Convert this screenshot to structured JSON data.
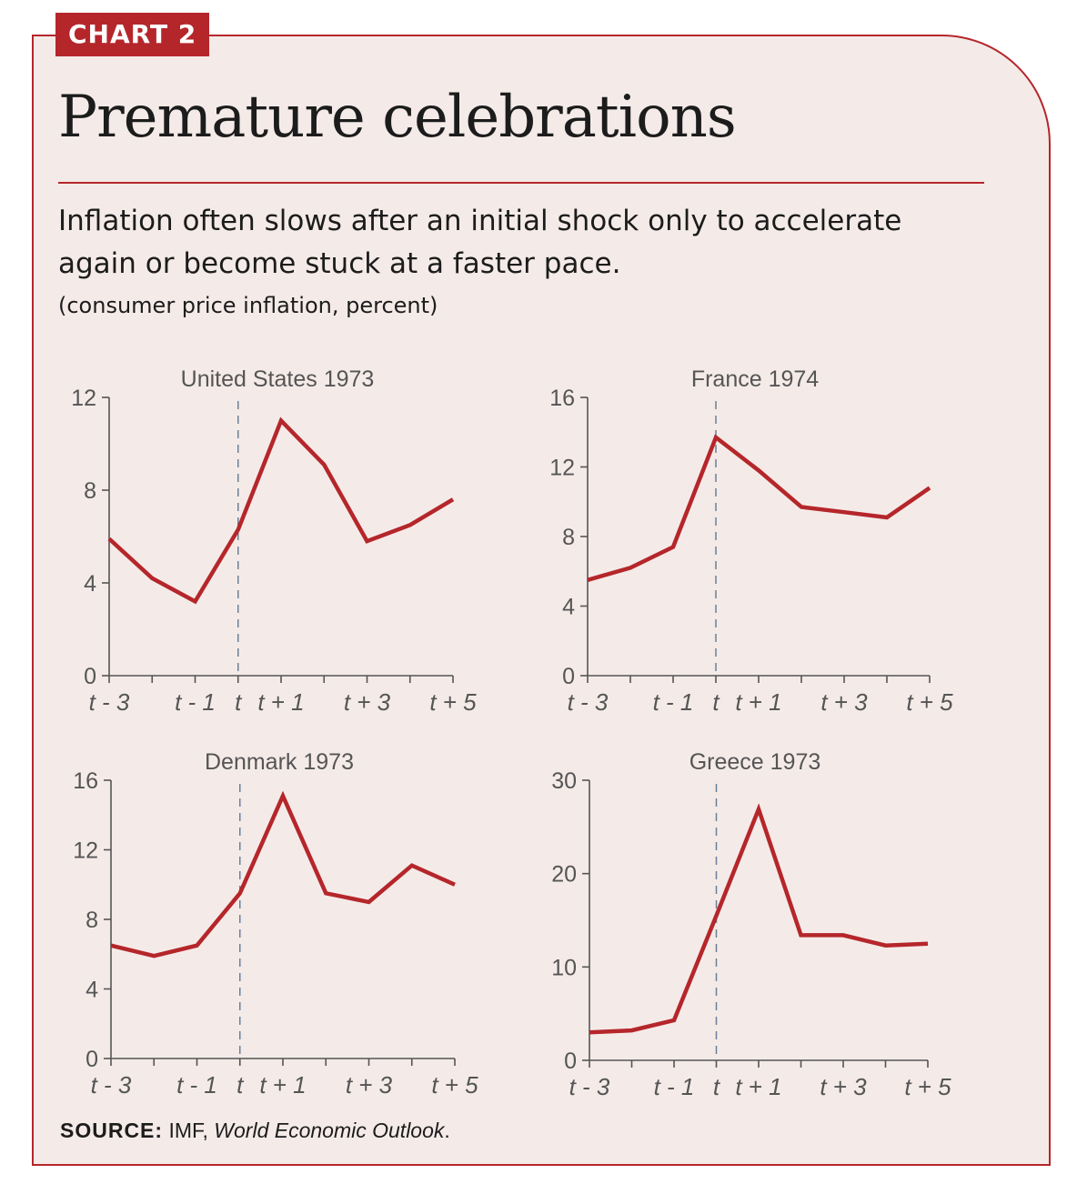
{
  "badge": "CHART 2",
  "title": "Premature celebrations",
  "subtitle": "Inflation often slows after an initial shock only to accelerate again or become stuck at a faster pace.",
  "units": "(consumer price inflation, percent)",
  "source": {
    "label": "SOURCE:",
    "publisher": "IMF,",
    "publication": "World Economic Outlook",
    "end": "."
  },
  "colors": {
    "line": "#b5262b",
    "axis": "#555555",
    "divider": "#6a7f96",
    "background": "#f4ebe8"
  },
  "chart_data": [
    {
      "type": "line",
      "title": "United States 1973",
      "x": [
        -3,
        -2,
        -1,
        0,
        1,
        2,
        3,
        4,
        5
      ],
      "ylim": [
        0,
        12
      ],
      "yticks": [
        0,
        4,
        8,
        12
      ],
      "xticks": [
        -3,
        -1,
        0,
        1,
        3,
        5
      ],
      "xticklabels": [
        "t - 3",
        "t - 1",
        "t",
        "t + 1",
        "t + 3",
        "t + 5"
      ],
      "series": [
        {
          "name": "Inflation",
          "values": [
            5.9,
            4.2,
            3.2,
            6.3,
            11.0,
            9.1,
            5.8,
            6.5,
            7.6
          ]
        }
      ],
      "vline": 0,
      "xlabel": "",
      "ylabel": ""
    },
    {
      "type": "line",
      "title": "France 1974",
      "x": [
        -3,
        -2,
        -1,
        0,
        1,
        2,
        3,
        4,
        5
      ],
      "ylim": [
        0,
        16
      ],
      "yticks": [
        0,
        4,
        8,
        12,
        16
      ],
      "xticks": [
        -3,
        -1,
        0,
        1,
        3,
        5
      ],
      "xticklabels": [
        "t - 3",
        "t - 1",
        "t",
        "t + 1",
        "t + 3",
        "t + 5"
      ],
      "series": [
        {
          "name": "Inflation",
          "values": [
            5.5,
            6.2,
            7.4,
            13.7,
            11.8,
            9.7,
            9.4,
            9.1,
            10.8
          ]
        }
      ],
      "vline": 0,
      "xlabel": "",
      "ylabel": ""
    },
    {
      "type": "line",
      "title": "Denmark 1973",
      "x": [
        -3,
        -2,
        -1,
        0,
        1,
        2,
        3,
        4,
        5
      ],
      "ylim": [
        0,
        16
      ],
      "yticks": [
        0,
        4,
        8,
        12,
        16
      ],
      "xticks": [
        -3,
        -1,
        0,
        1,
        3,
        5
      ],
      "xticklabels": [
        "t - 3",
        "t - 1",
        "t",
        "t + 1",
        "t + 3",
        "t + 5"
      ],
      "series": [
        {
          "name": "Inflation",
          "values": [
            6.5,
            5.9,
            6.5,
            9.5,
            15.1,
            9.5,
            9.0,
            11.1,
            10.0
          ]
        }
      ],
      "vline": 0,
      "xlabel": "",
      "ylabel": ""
    },
    {
      "type": "line",
      "title": "Greece 1973",
      "x": [
        -3,
        -2,
        -1,
        0,
        1,
        2,
        3,
        4,
        5
      ],
      "ylim": [
        0,
        30
      ],
      "yticks": [
        0,
        10,
        20,
        30
      ],
      "xticks": [
        -3,
        -1,
        0,
        1,
        3,
        5
      ],
      "xticklabels": [
        "t - 3",
        "t - 1",
        "t",
        "t + 1",
        "t + 3",
        "t + 5"
      ],
      "series": [
        {
          "name": "Inflation",
          "values": [
            3.0,
            3.2,
            4.3,
            15.5,
            26.9,
            13.4,
            13.4,
            12.3,
            12.5
          ]
        }
      ],
      "vline": 0,
      "xlabel": "",
      "ylabel": ""
    }
  ]
}
